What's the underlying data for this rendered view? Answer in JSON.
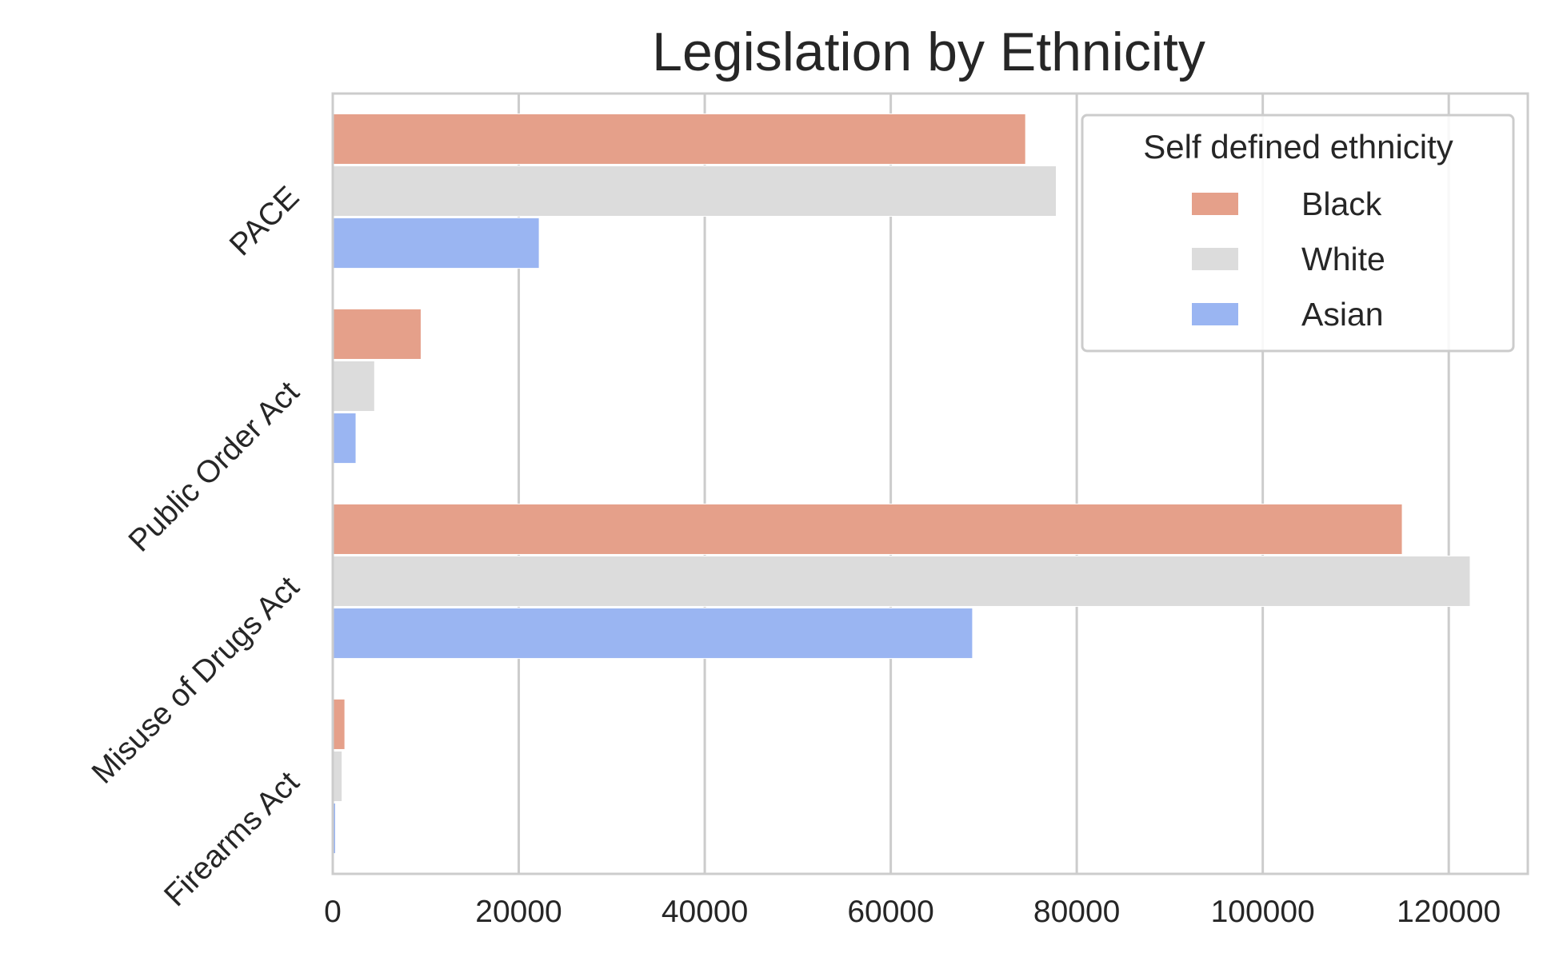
{
  "chart_data": {
    "type": "bar",
    "orientation": "horizontal",
    "title": "Legislation by Ethnicity",
    "xlabel": "",
    "ylabel": "",
    "categories": [
      "PACE",
      "Public Order Act",
      "Misuse of Drugs Act",
      "Firearms Act"
    ],
    "series": [
      {
        "name": "Black",
        "color": "#e5a08a",
        "values": [
          74500,
          9500,
          115000,
          1300
        ]
      },
      {
        "name": "White",
        "color": "#dcdcdc",
        "values": [
          77800,
          4500,
          122300,
          1000
        ]
      },
      {
        "name": "Asian",
        "color": "#9ab5f2",
        "values": [
          22200,
          2500,
          68800,
          300
        ]
      }
    ],
    "xlim": [
      0,
      128500
    ],
    "xticks": [
      0,
      20000,
      40000,
      60000,
      80000,
      100000,
      120000
    ],
    "xtick_labels": [
      "0",
      "20000",
      "40000",
      "60000",
      "80000",
      "100000",
      "120000"
    ],
    "grid": "vertical",
    "legend": {
      "title": "Self defined ethnicity",
      "placement": "top-right"
    }
  }
}
